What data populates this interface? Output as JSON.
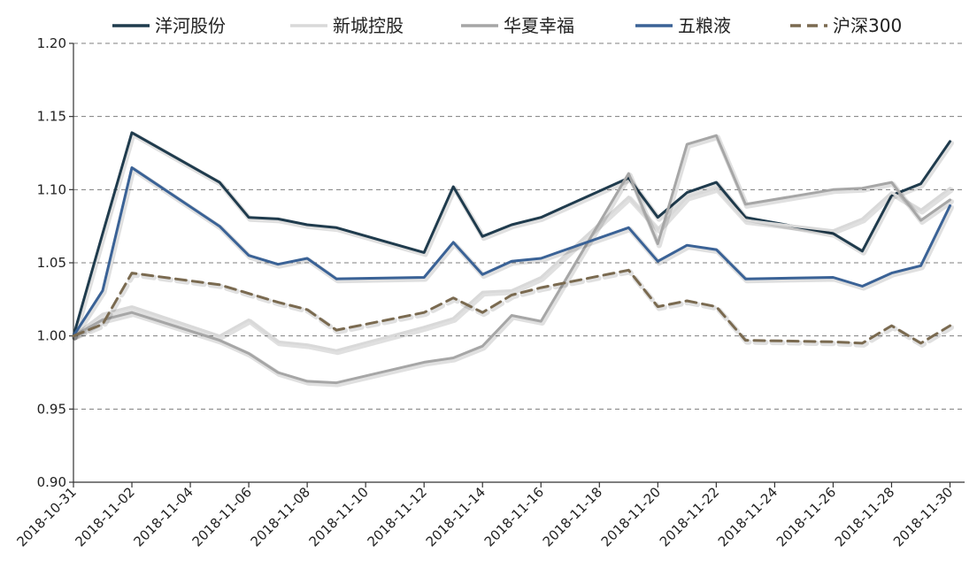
{
  "chart_data": {
    "type": "line",
    "title": "",
    "xlabel": "",
    "ylabel": "",
    "ylim": [
      0.9,
      1.2
    ],
    "yticks": [
      "0.90",
      "0.95",
      "1.00",
      "1.05",
      "1.10",
      "1.15",
      "1.20"
    ],
    "grid": true,
    "legend_position": "top",
    "xticks": [
      "2018-10-31",
      "2018-11-02",
      "2018-11-04",
      "2018-11-06",
      "2018-11-08",
      "2018-11-10",
      "2018-11-12",
      "2018-11-14",
      "2018-11-16",
      "2018-11-18",
      "2018-11-20",
      "2018-11-22",
      "2018-11-24",
      "2018-11-26",
      "2018-11-28",
      "2018-11-30"
    ],
    "x": [
      "2018-10-31",
      "2018-11-01",
      "2018-11-02",
      "2018-11-05",
      "2018-11-06",
      "2018-11-07",
      "2018-11-08",
      "2018-11-09",
      "2018-11-12",
      "2018-11-13",
      "2018-11-14",
      "2018-11-15",
      "2018-11-16",
      "2018-11-19",
      "2018-11-20",
      "2018-11-21",
      "2018-11-22",
      "2018-11-23",
      "2018-11-26",
      "2018-11-27",
      "2018-11-28",
      "2018-11-29",
      "2018-11-30"
    ],
    "series": [
      {
        "name": "洋河股份",
        "color": "#1f3b4d",
        "dash": "solid",
        "values": [
          1.0,
          1.07,
          1.139,
          1.105,
          1.081,
          1.08,
          1.076,
          1.074,
          1.057,
          1.102,
          1.068,
          1.076,
          1.081,
          1.108,
          1.081,
          1.098,
          1.105,
          1.081,
          1.07,
          1.058,
          1.096,
          1.104,
          1.133
        ]
      },
      {
        "name": "新城控股",
        "color": "#d9d9d9",
        "dash": "solid",
        "values": [
          1.0,
          1.015,
          1.02,
          1.0,
          1.011,
          0.996,
          0.994,
          0.99,
          1.006,
          1.012,
          1.03,
          1.031,
          1.04,
          1.095,
          1.073,
          1.095,
          1.101,
          1.079,
          1.072,
          1.08,
          1.098,
          1.086,
          1.101
        ]
      },
      {
        "name": "华夏幸福",
        "color": "#a6a6a6",
        "dash": "solid",
        "values": [
          1.0,
          1.011,
          1.016,
          0.997,
          0.988,
          0.975,
          0.969,
          0.968,
          0.982,
          0.985,
          0.993,
          1.014,
          1.01,
          1.111,
          1.063,
          1.131,
          1.137,
          1.09,
          1.1,
          1.101,
          1.105,
          1.079,
          1.093
        ]
      },
      {
        "name": "五粮液",
        "color": "#3a6296",
        "dash": "solid",
        "values": [
          1.0,
          1.031,
          1.115,
          1.075,
          1.055,
          1.049,
          1.053,
          1.039,
          1.04,
          1.064,
          1.042,
          1.051,
          1.053,
          1.074,
          1.051,
          1.062,
          1.059,
          1.039,
          1.04,
          1.034,
          1.043,
          1.048,
          1.089
        ]
      },
      {
        "name": "沪深300",
        "color": "#7a6a50",
        "dash": "dashed",
        "values": [
          1.0,
          1.008,
          1.043,
          1.035,
          1.029,
          1.023,
          1.018,
          1.004,
          1.016,
          1.026,
          1.016,
          1.028,
          1.033,
          1.045,
          1.02,
          1.024,
          1.02,
          0.997,
          0.996,
          0.995,
          1.007,
          0.995,
          1.007
        ]
      }
    ]
  }
}
